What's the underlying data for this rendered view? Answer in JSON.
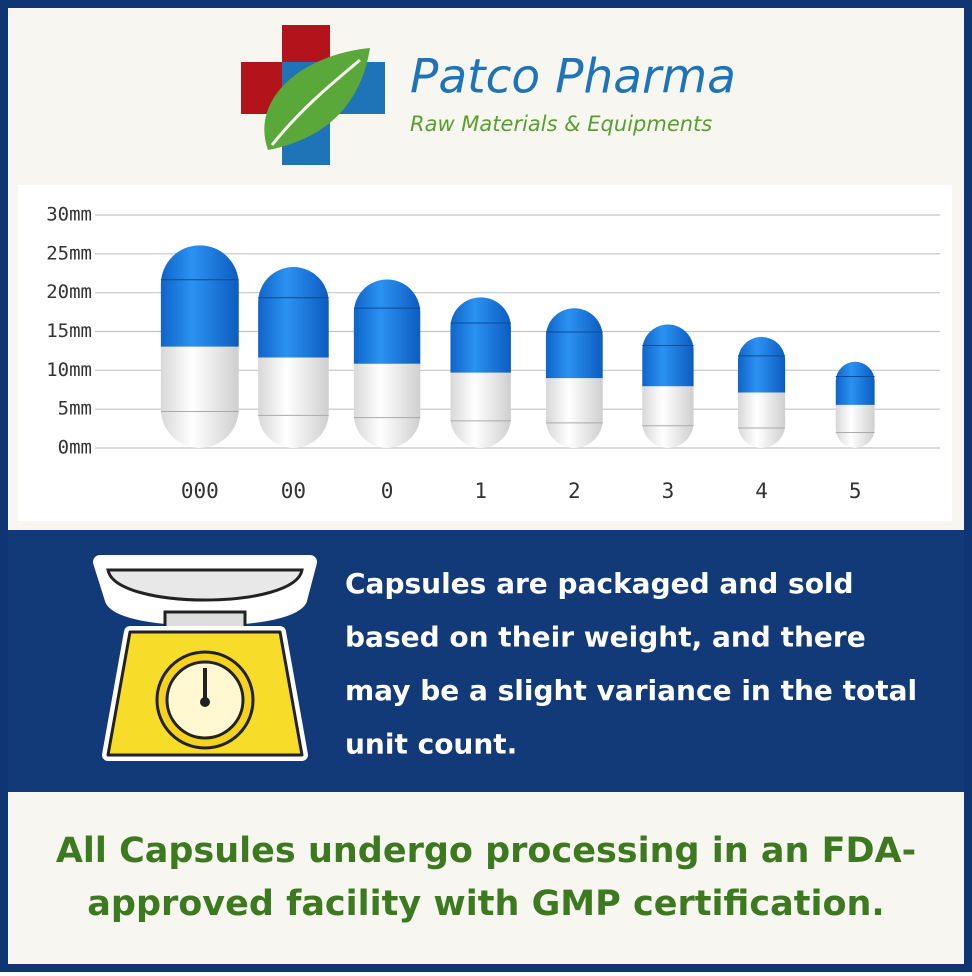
{
  "header": {
    "brand": "Patco Pharma",
    "tagline": "Raw Materials & Equipments"
  },
  "chart_data": {
    "type": "capsule",
    "categories": [
      "000",
      "00",
      "0",
      "1",
      "2",
      "3",
      "4",
      "5"
    ],
    "values": [
      26.1,
      23.3,
      21.7,
      19.4,
      18,
      15.9,
      14.3,
      11.1
    ],
    "cap_color": "#1a7fe6",
    "body_color": "#f2f2f2",
    "ylim": [
      0,
      30
    ],
    "yticks": [
      {
        "value": 0,
        "label": "0mm"
      },
      {
        "value": 5,
        "label": "5mm"
      },
      {
        "value": 10,
        "label": "10mm"
      },
      {
        "value": 15,
        "label": "15mm"
      },
      {
        "value": 20,
        "label": "20mm"
      },
      {
        "value": 25,
        "label": "25mm"
      },
      {
        "value": 30,
        "label": "30mm"
      }
    ],
    "grid": true
  },
  "info": {
    "lines": [
      "Capsules are packaged and sold",
      "based on their weight, and there",
      "may be a slight variance in the total",
      "unit count."
    ]
  },
  "footer": {
    "lines": [
      "All Capsules undergo processing in an FDA-",
      "approved facility with GMP certification."
    ]
  }
}
